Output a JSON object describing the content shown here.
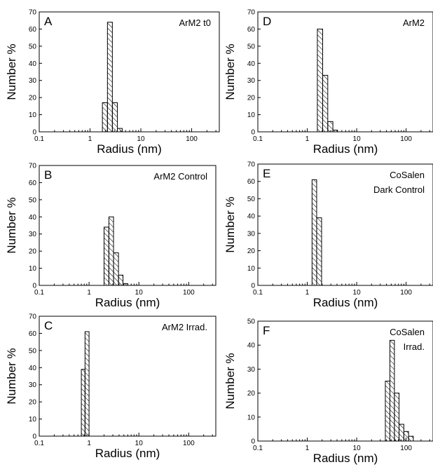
{
  "chart_data": [
    {
      "type": "bar",
      "panel_letter": "A",
      "title_lines": [
        "ArM2 t0"
      ],
      "xlabel": "Radius (nm)",
      "ylabel": "Number %",
      "xscale": "log",
      "xlim": [
        0.1,
        350
      ],
      "ylim": [
        0,
        70
      ],
      "yticks": [
        0,
        10,
        20,
        30,
        40,
        50,
        60,
        70
      ],
      "xticks": [
        "0.1",
        "1",
        "10",
        "100"
      ],
      "bins": [
        {
          "x0": 1.75,
          "x1": 2.2,
          "value": 17
        },
        {
          "x0": 2.2,
          "x1": 2.75,
          "value": 64
        },
        {
          "x0": 2.75,
          "x1": 3.45,
          "value": 17
        },
        {
          "x0": 3.45,
          "x1": 4.3,
          "value": 2
        }
      ]
    },
    {
      "type": "bar",
      "panel_letter": "B",
      "title_lines": [
        "ArM2 Control"
      ],
      "xlabel": "Radius (nm)",
      "ylabel": "Number %",
      "xscale": "log",
      "xlim": [
        0.1,
        350
      ],
      "ylim": [
        0,
        70
      ],
      "yticks": [
        0,
        10,
        20,
        30,
        40,
        50,
        60,
        70
      ],
      "xticks": [
        "0.1",
        "1",
        "10",
        "100"
      ],
      "bins": [
        {
          "x0": 2.0,
          "x1": 2.5,
          "value": 34
        },
        {
          "x0": 2.5,
          "x1": 3.1,
          "value": 40
        },
        {
          "x0": 3.1,
          "x1": 3.9,
          "value": 19
        },
        {
          "x0": 3.9,
          "x1": 4.8,
          "value": 6
        },
        {
          "x0": 4.8,
          "x1": 6.0,
          "value": 1
        }
      ]
    },
    {
      "type": "bar",
      "panel_letter": "C",
      "title_lines": [
        "ArM2 Irrad."
      ],
      "xlabel": "Radius (nm)",
      "ylabel": "Number %",
      "xscale": "log",
      "xlim": [
        0.1,
        350
      ],
      "ylim": [
        0,
        70
      ],
      "yticks": [
        0,
        10,
        20,
        30,
        40,
        50,
        60,
        70
      ],
      "xticks": [
        "0.1",
        "1",
        "10",
        "100"
      ],
      "bins": [
        {
          "x0": 0.7,
          "x1": 0.83,
          "value": 39
        },
        {
          "x0": 0.83,
          "x1": 1.0,
          "value": 61
        }
      ]
    },
    {
      "type": "bar",
      "panel_letter": "D",
      "title_lines": [
        "ArM2"
      ],
      "xlabel": "Radius (nm)",
      "ylabel": "Number %",
      "xscale": "log",
      "xlim": [
        0.1,
        350
      ],
      "ylim": [
        0,
        70
      ],
      "yticks": [
        0,
        10,
        20,
        30,
        40,
        50,
        60,
        70
      ],
      "xticks": [
        "0.1",
        "1",
        "10",
        "100"
      ],
      "bins": [
        {
          "x0": 1.6,
          "x1": 2.05,
          "value": 60
        },
        {
          "x0": 2.05,
          "x1": 2.6,
          "value": 33
        },
        {
          "x0": 2.6,
          "x1": 3.3,
          "value": 6
        },
        {
          "x0": 3.3,
          "x1": 4.1,
          "value": 1
        }
      ]
    },
    {
      "type": "bar",
      "panel_letter": "E",
      "title_lines": [
        "CoSalen",
        "Dark Control"
      ],
      "xlabel": "Radius (nm)",
      "ylabel": "Number %",
      "xscale": "log",
      "xlim": [
        0.1,
        350
      ],
      "ylim": [
        0,
        70
      ],
      "yticks": [
        0,
        10,
        20,
        30,
        40,
        50,
        60,
        70
      ],
      "xticks": [
        "0.1",
        "1",
        "10",
        "100"
      ],
      "bins": [
        {
          "x0": 1.25,
          "x1": 1.55,
          "value": 61
        },
        {
          "x0": 1.55,
          "x1": 1.95,
          "value": 39
        }
      ]
    },
    {
      "type": "bar",
      "panel_letter": "F",
      "title_lines": [
        "CoSalen",
        "Irrad."
      ],
      "xlabel": "Radius (nm)",
      "ylabel": "Number %",
      "xscale": "log",
      "xlim": [
        0.1,
        350
      ],
      "ylim": [
        0,
        50
      ],
      "yticks": [
        0,
        10,
        20,
        30,
        40,
        50
      ],
      "xticks": [
        "0.1",
        "1",
        "10",
        "100"
      ],
      "bins": [
        {
          "x0": 38,
          "x1": 47,
          "value": 25
        },
        {
          "x0": 47,
          "x1": 58,
          "value": 42
        },
        {
          "x0": 58,
          "x1": 72,
          "value": 20
        },
        {
          "x0": 72,
          "x1": 90,
          "value": 7
        },
        {
          "x0": 90,
          "x1": 112,
          "value": 4
        },
        {
          "x0": 112,
          "x1": 140,
          "value": 2
        }
      ]
    }
  ]
}
